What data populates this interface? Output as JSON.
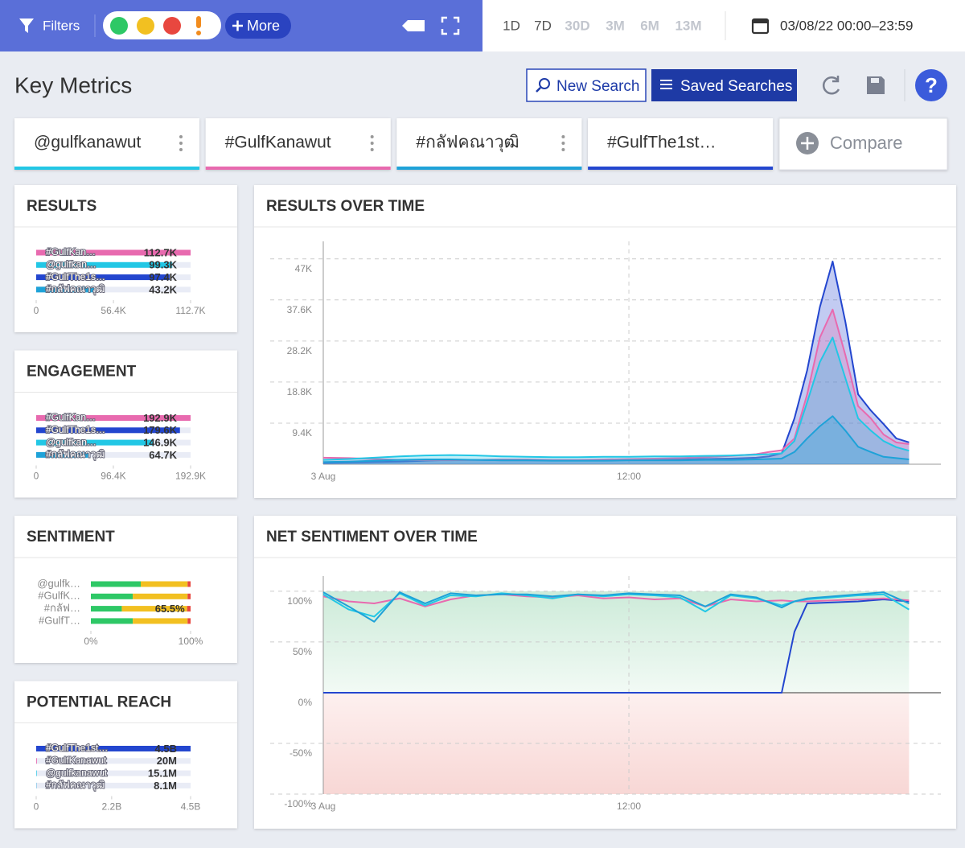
{
  "toolbar": {
    "filters": "Filters",
    "more": "More",
    "ranges": [
      {
        "label": "1D",
        "enabled": true
      },
      {
        "label": "7D",
        "enabled": true
      },
      {
        "label": "30D",
        "enabled": false
      },
      {
        "label": "3M",
        "enabled": false
      },
      {
        "label": "6M",
        "enabled": false
      },
      {
        "label": "13M",
        "enabled": false
      }
    ],
    "date": "03/08/22 00:00–23:59"
  },
  "header": {
    "title": "Key Metrics",
    "new_search": "New Search",
    "saved_searches": "Saved Searches",
    "help": "?"
  },
  "tabs": [
    {
      "label": "@gulfkanawut",
      "color": "#22c7e5"
    },
    {
      "label": "#GulfKanawut",
      "color": "#e86aaf"
    },
    {
      "label": "#กลัฟคณาวุฒิ",
      "color": "#1ea2d8"
    },
    {
      "label": "#GulfThe1st…",
      "color": "#2346cf"
    }
  ],
  "compare": "Compare",
  "chart_data": [
    {
      "type": "bar",
      "orientation": "horizontal",
      "title": "RESULTS",
      "categories": [
        "#GulfKan…",
        "@gulfkan…",
        "#GulfThe1s…",
        "#กลัฟคณาวุฒิ"
      ],
      "values": [
        112700,
        99300,
        97400,
        43200
      ],
      "value_labels": [
        "112.7K",
        "99.3K",
        "97.4K",
        "43.2K"
      ],
      "colors": [
        "#e86aaf",
        "#22c7e5",
        "#2346cf",
        "#1ea2d8"
      ],
      "xlim": [
        0,
        112700
      ],
      "xticks": [
        0,
        {
          "value": 56400,
          "label": "56.4K"
        },
        {
          "value": 112700,
          "label": "112.7K"
        }
      ]
    },
    {
      "type": "bar",
      "orientation": "horizontal",
      "title": "ENGAGEMENT",
      "categories": [
        "#GulfKan…",
        "#GulfThe1s…",
        "@gulfkan…",
        "#กลัฟคณาวุฒิ"
      ],
      "values": [
        192900,
        179600,
        146900,
        64700
      ],
      "value_labels": [
        "192.9K",
        "179.6K",
        "146.9K",
        "64.7K"
      ],
      "colors": [
        "#e86aaf",
        "#2346cf",
        "#22c7e5",
        "#1ea2d8"
      ],
      "xlim": [
        0,
        192900
      ],
      "xticks": [
        0,
        {
          "value": 96400,
          "label": "96.4K"
        },
        {
          "value": 192900,
          "label": "192.9K"
        }
      ]
    },
    {
      "type": "stacked_bar",
      "orientation": "horizontal",
      "title": "SENTIMENT",
      "categories": [
        "@gulfk…",
        "#GulfK…",
        "#กลัฟ…",
        "#GulfT…"
      ],
      "series": [
        {
          "color": "#2ec866",
          "values": [
            50,
            42,
            31,
            42
          ]
        },
        {
          "color": "#f2c021",
          "values": [
            47,
            55,
            65.5,
            55
          ],
          "value_labels": [
            null,
            null,
            "65.5%",
            null
          ]
        },
        {
          "color": "#e8473f",
          "values": [
            3,
            3,
            3.5,
            3
          ]
        }
      ],
      "xlim": [
        0,
        100
      ],
      "xticks": [
        {
          "value": 0,
          "label": "0%"
        },
        {
          "value": 100,
          "label": "100%"
        }
      ]
    },
    {
      "type": "bar",
      "orientation": "horizontal",
      "title": "POTENTIAL REACH",
      "categories": [
        "#GulfThe1st…",
        "#GulfKanawut",
        "@gulfkanawut",
        "#กลัฟคณาวุฒิ"
      ],
      "values": [
        4500000000,
        20000000,
        15100000,
        8100000
      ],
      "value_labels": [
        "4.5B",
        "20M",
        "15.1M",
        "8.1M"
      ],
      "colors": [
        "#2346cf",
        "#e86aaf",
        "#22c7e5",
        "#1ea2d8"
      ],
      "xlim": [
        0,
        4500000000
      ],
      "xticks": [
        0,
        {
          "value": 2200000000,
          "label": "2.2B"
        },
        {
          "value": 4500000000,
          "label": "4.5B"
        }
      ]
    },
    {
      "type": "area",
      "title": "RESULTS OVER TIME",
      "x": [
        0,
        1,
        2,
        3,
        4,
        5,
        6,
        7,
        8,
        9,
        10,
        11,
        12,
        13,
        14,
        15,
        16,
        17,
        17.5,
        18,
        18.5,
        19,
        19.5,
        20,
        20.5,
        21,
        21.5,
        22,
        22.5,
        23
      ],
      "series": [
        {
          "color": "#2346cf",
          "values": [
            300,
            400,
            500,
            600,
            800,
            1000,
            1000,
            900,
            900,
            900,
            900,
            1000,
            1000,
            1000,
            1100,
            1200,
            1300,
            1500,
            1800,
            2500,
            10500,
            21500,
            36000,
            46400,
            32600,
            16000,
            12300,
            9200,
            5900,
            5000
          ]
        },
        {
          "color": "#e86aaf",
          "values": [
            1500,
            1400,
            1200,
            1000,
            900,
            900,
            1000,
            1100,
            1100,
            1000,
            1000,
            1100,
            1200,
            1300,
            1400,
            1600,
            1900,
            2300,
            2800,
            3200,
            5900,
            16000,
            29000,
            35400,
            25000,
            13300,
            10500,
            6800,
            5000,
            4600
          ]
        },
        {
          "color": "#22c7e5",
          "values": [
            1000,
            1200,
            1500,
            1800,
            2000,
            2100,
            2000,
            1800,
            1700,
            1600,
            1600,
            1700,
            1700,
            1800,
            1800,
            1900,
            2000,
            2200,
            2300,
            2500,
            5300,
            14200,
            23400,
            29000,
            19700,
            10500,
            7700,
            5300,
            3900,
            3100
          ]
        },
        {
          "color": "#1ea2d8",
          "values": [
            500,
            600,
            800,
            1000,
            1100,
            1100,
            1000,
            900,
            900,
            800,
            800,
            800,
            900,
            900,
            900,
            1000,
            1000,
            1100,
            1200,
            1300,
            2800,
            5900,
            8700,
            11000,
            7700,
            4000,
            2800,
            1700,
            1400,
            1100
          ]
        }
      ],
      "xlim": [
        0,
        24.25
      ],
      "xticks": [
        {
          "value": 0,
          "label": "3 Aug"
        },
        {
          "value": 12,
          "label": "12:00"
        }
      ],
      "ylim": [
        0,
        51000
      ],
      "yticks": [
        {
          "value": 9400,
          "label": "9.4K"
        },
        {
          "value": 18800,
          "label": "18.8K"
        },
        {
          "value": 28200,
          "label": "28.2K"
        },
        {
          "value": 37600,
          "label": "37.6K"
        },
        {
          "value": 47000,
          "label": "47K"
        }
      ]
    },
    {
      "type": "line",
      "title": "NET SENTIMENT OVER TIME",
      "x": [
        0,
        1,
        2,
        3,
        4,
        5,
        6,
        7,
        8,
        9,
        10,
        11,
        12,
        13,
        14,
        15,
        16,
        17,
        18,
        18.5,
        19,
        20,
        21,
        22,
        23
      ],
      "series": [
        {
          "color": "#2346cf",
          "values": [
            0,
            0,
            0,
            0,
            0,
            0,
            0,
            0,
            0,
            0,
            0,
            0,
            0,
            0,
            0,
            0,
            0,
            0,
            0,
            60,
            88,
            89,
            90,
            92,
            90
          ]
        },
        {
          "color": "#e86aaf",
          "values": [
            95,
            90,
            88,
            93,
            85,
            92,
            96,
            97,
            95,
            94,
            96,
            93,
            94,
            92,
            93,
            85,
            92,
            90,
            91,
            90,
            90,
            91,
            92,
            93,
            91
          ]
        },
        {
          "color": "#22c7e5",
          "values": [
            97,
            82,
            75,
            98,
            86,
            96,
            95,
            98,
            96,
            93,
            97,
            95,
            97,
            96,
            94,
            80,
            96,
            93,
            86,
            90,
            92,
            94,
            96,
            97,
            82
          ]
        },
        {
          "color": "#1ea2d8",
          "values": [
            99,
            85,
            70,
            99,
            88,
            98,
            96,
            97,
            97,
            95,
            97,
            96,
            98,
            97,
            96,
            85,
            97,
            94,
            84,
            90,
            93,
            95,
            97,
            99,
            88
          ]
        }
      ],
      "xlim": [
        0,
        24.25
      ],
      "xticks": [
        {
          "value": 0,
          "label": "3 Aug"
        },
        {
          "value": 12,
          "label": "12:00"
        }
      ],
      "ylim": [
        -100,
        115
      ],
      "yticks": [
        {
          "value": 100,
          "label": "100%"
        },
        {
          "value": 50,
          "label": "50%"
        },
        {
          "value": 0,
          "label": "0%"
        },
        {
          "value": -50,
          "label": "-50%"
        },
        {
          "value": -100,
          "label": "-100%"
        }
      ]
    }
  ]
}
